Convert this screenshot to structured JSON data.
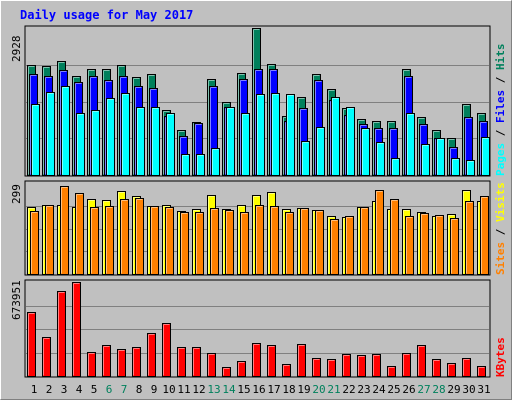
{
  "chart_data": [
    {
      "type": "bar",
      "title": "Daily usage for May 2017",
      "categories": [
        "1",
        "2",
        "3",
        "4",
        "5",
        "6",
        "7",
        "8",
        "9",
        "10",
        "11",
        "12",
        "13",
        "14",
        "15",
        "16",
        "17",
        "18",
        "19",
        "20",
        "21",
        "22",
        "23",
        "24",
        "25",
        "26",
        "27",
        "28",
        "29",
        "30",
        "31"
      ],
      "weekend_days": [
        "6",
        "7",
        "13",
        "14",
        "20",
        "21",
        "27",
        "28"
      ],
      "ylabel_parts": [
        "Pages",
        "Files",
        "Hits"
      ],
      "ymax_label": "2928",
      "ylim": [
        0,
        2928
      ],
      "grid": true,
      "series": [
        {
          "name": "Hits",
          "color": "#00805c",
          "values": [
            2196,
            2176,
            2274,
            1971,
            2117,
            2117,
            2196,
            1951,
            2019,
            1291,
            897,
            1056,
            1909,
            1458,
            2039,
            2928,
            2216,
            1174,
            1547,
            2019,
            1705,
            1331,
            1115,
            1076,
            1076,
            2117,
            1155,
            897,
            731,
            1419,
            1233
          ]
        },
        {
          "name": "Files",
          "color": "#0000ff",
          "values": [
            2019,
            1971,
            2098,
            1844,
            1971,
            1902,
            1971,
            1774,
            1735,
            1174,
            779,
            1037,
            1764,
            1351,
            1912,
            2117,
            2117,
            1076,
            1331,
            1902,
            1488,
            1195,
            1019,
            937,
            937,
            1971,
            1019,
            740,
            554,
            1155,
            1076
          ]
        },
        {
          "name": "Pages",
          "color": "#00ffff",
          "values": [
            1419,
            1656,
            1764,
            1233,
            1291,
            1537,
            1626,
            1360,
            1360,
            1233,
            416,
            416,
            543,
            1360,
            1233,
            1606,
            1626,
            1615,
            681,
            956,
            1547,
            1351,
            937,
            653,
            346,
            1233,
            622,
            740,
            339,
            296,
            760
          ]
        }
      ]
    },
    {
      "type": "bar",
      "categories": [
        "1",
        "2",
        "3",
        "4",
        "5",
        "6",
        "7",
        "8",
        "9",
        "10",
        "11",
        "12",
        "13",
        "14",
        "15",
        "16",
        "17",
        "18",
        "19",
        "20",
        "21",
        "22",
        "23",
        "24",
        "25",
        "26",
        "27",
        "28",
        "29",
        "30",
        "31"
      ],
      "ylabel_parts": [
        "Sites",
        "Visits"
      ],
      "ymax_label": "299",
      "ylim": [
        0,
        299
      ],
      "grid": true,
      "series": [
        {
          "name": "Visits",
          "color": "#ffff00",
          "values": [
            220,
            227,
            228,
            220,
            246,
            243,
            273,
            257,
            225,
            226,
            208,
            215,
            261,
            215,
            226,
            258,
            268,
            212,
            218,
            211,
            190,
            186,
            221,
            240,
            213,
            215,
            205,
            190,
            196,
            275,
            240
          ]
        },
        {
          "name": "Sites",
          "color": "#ff8000",
          "values": [
            207,
            227,
            290,
            265,
            219,
            225,
            246,
            250,
            222,
            220,
            205,
            203,
            216,
            211,
            205,
            226,
            225,
            203,
            217,
            211,
            181,
            191,
            220,
            275,
            247,
            191,
            201,
            195,
            183,
            241,
            255
          ]
        }
      ]
    },
    {
      "type": "bar",
      "categories": [
        "1",
        "2",
        "3",
        "4",
        "5",
        "6",
        "7",
        "8",
        "9",
        "10",
        "11",
        "12",
        "13",
        "14",
        "15",
        "16",
        "17",
        "18",
        "19",
        "20",
        "21",
        "22",
        "23",
        "24",
        "25",
        "26",
        "27",
        "28",
        "29",
        "30",
        "31"
      ],
      "ylabel_parts": [
        "KBytes"
      ],
      "ymax_label": "673951",
      "ylim": [
        0,
        673951
      ],
      "grid": true,
      "series": [
        {
          "name": "KBytes",
          "color": "#ff0000",
          "values": [
            460000,
            280000,
            606000,
            674000,
            175000,
            221000,
            194000,
            208000,
            305000,
            380000,
            206000,
            208000,
            164000,
            62000,
            109000,
            236000,
            225000,
            88000,
            226000,
            127000,
            119000,
            156000,
            148000,
            156000,
            70000,
            166000,
            225000,
            119000,
            91000,
            132000,
            75000
          ]
        }
      ]
    }
  ]
}
